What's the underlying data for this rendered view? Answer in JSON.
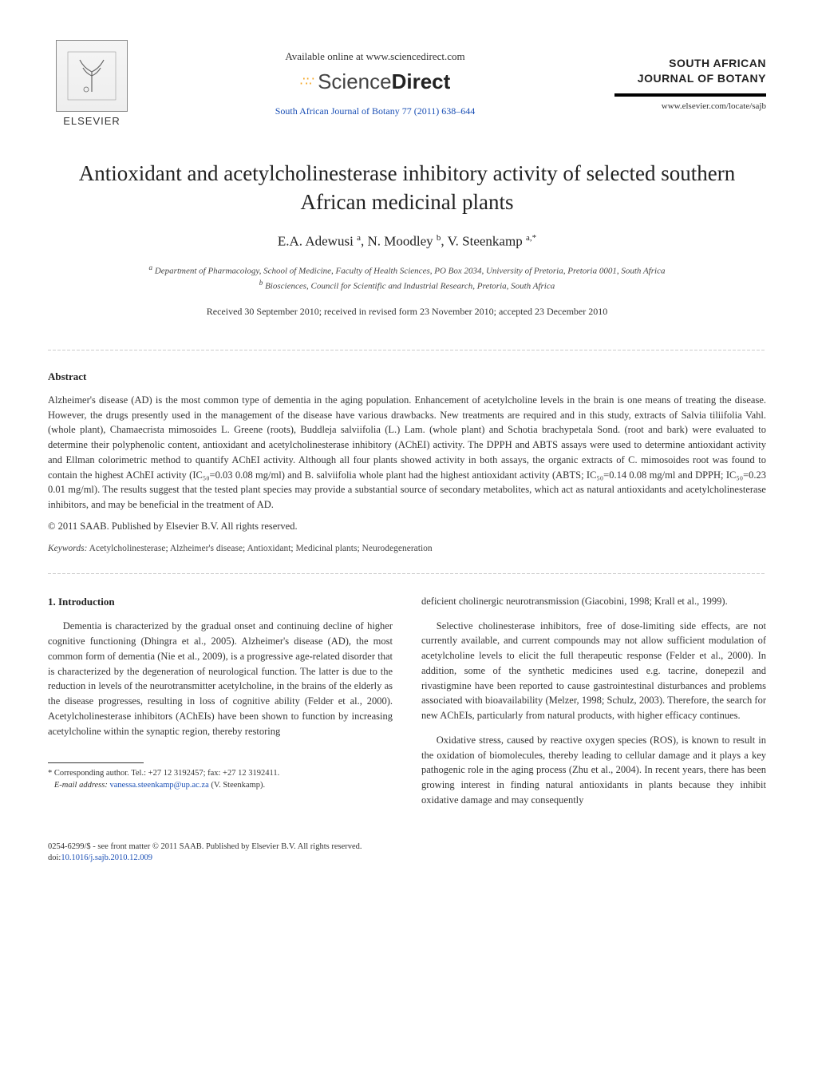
{
  "header": {
    "publisher": "ELSEVIER",
    "available_online": "Available online at www.sciencedirect.com",
    "sciencedirect_light": "Science",
    "sciencedirect_bold": "Direct",
    "journal_ref": "South African Journal of Botany 77 (2011) 638–644",
    "journal_name_line1": "SOUTH AFRICAN",
    "journal_name_line2": "JOURNAL OF BOTANY",
    "journal_url": "www.elsevier.com/locate/sajb"
  },
  "title": "Antioxidant and acetylcholinesterase inhibitory activity of selected southern African medicinal plants",
  "authors_html": "E.A. Adewusi <sup>a</sup>, N. Moodley <sup>b</sup>, V. Steenkamp <sup>a,*</sup>",
  "affiliations": {
    "a": "Department of Pharmacology, School of Medicine, Faculty of Health Sciences, PO Box 2034, University of Pretoria, Pretoria 0001, South Africa",
    "b": "Biosciences, Council for Scientific and Industrial Research, Pretoria, South Africa"
  },
  "received": "Received 30 September 2010; received in revised form 23 November 2010; accepted 23 December 2010",
  "abstract": {
    "heading": "Abstract",
    "body": "Alzheimer's disease (AD) is the most common type of dementia in the aging population. Enhancement of acetylcholine levels in the brain is one means of treating the disease. However, the drugs presently used in the management of the disease have various drawbacks. New treatments are required and in this study, extracts of Salvia tiliifolia Vahl. (whole plant), Chamaecrista mimosoides L. Greene (roots), Buddleja salviifolia (L.) Lam. (whole plant) and Schotia brachypetala Sond. (root and bark) were evaluated to determine their polyphenolic content, antioxidant and acetylcholinesterase inhibitory (AChEI) activity. The DPPH and ABTS assays were used to determine antioxidant activity and Ellman colorimetric method to quantify AChEI activity. Although all four plants showed activity in both assays, the organic extracts of C. mimosoides root was found to contain the highest AChEI activity (IC₅₀=0.03 0.08 mg/ml) and B. salviifolia whole plant had the highest antioxidant activity (ABTS; IC₅₀=0.14 0.08 mg/ml and DPPH; IC₅₀=0.23 0.01 mg/ml). The results suggest that the tested plant species may provide a substantial source of secondary metabolites, which act as natural antioxidants and acetylcholinesterase inhibitors, and may be beneficial in the treatment of AD.",
    "copyright": "© 2011 SAAB. Published by Elsevier B.V. All rights reserved."
  },
  "keywords": {
    "label": "Keywords:",
    "text": "Acetylcholinesterase; Alzheimer's disease; Antioxidant; Medicinal plants; Neurodegeneration"
  },
  "intro": {
    "heading": "1. Introduction",
    "left_p1": "Dementia is characterized by the gradual onset and continuing decline of higher cognitive functioning (Dhingra et al., 2005). Alzheimer's disease (AD), the most common form of dementia (Nie et al., 2009), is a progressive age-related disorder that is characterized by the degeneration of neurological function. The latter is due to the reduction in levels of the neurotransmitter acetylcholine, in the brains of the elderly as the disease progresses, resulting in loss of cognitive ability (Felder et al., 2000). Acetylcholinesterase inhibitors (AChEIs) have been shown to function by increasing acetylcholine within the synaptic region, thereby restoring",
    "right_p1": "deficient cholinergic neurotransmission (Giacobini, 1998; Krall et al., 1999).",
    "right_p2": "Selective cholinesterase inhibitors, free of dose-limiting side effects, are not currently available, and current compounds may not allow sufficient modulation of acetylcholine levels to elicit the full therapeutic response (Felder et al., 2000). In addition, some of the synthetic medicines used e.g. tacrine, donepezil and rivastigmine have been reported to cause gastrointestinal disturbances and problems associated with bioavailability (Melzer, 1998; Schulz, 2003). Therefore, the search for new AChEIs, particularly from natural products, with higher efficacy continues.",
    "right_p3": "Oxidative stress, caused by reactive oxygen species (ROS), is known to result in the oxidation of biomolecules, thereby leading to cellular damage and it plays a key pathogenic role in the aging process (Zhu et al., 2004). In recent years, there has been growing interest in finding natural antioxidants in plants because they inhibit oxidative damage and may consequently"
  },
  "footnote": {
    "corresponding": "Corresponding author. Tel.: +27 12 3192457; fax: +27 12 3192411.",
    "email_label": "E-mail address:",
    "email": "vanessa.steenkamp@up.ac.za",
    "email_who": "(V. Steenkamp)."
  },
  "bottom": {
    "line1": "0254-6299/$ - see front matter © 2011 SAAB. Published by Elsevier B.V. All rights reserved.",
    "doi_label": "doi:",
    "doi": "10.1016/j.sajb.2010.12.009"
  },
  "colors": {
    "link_blue": "#1a4fb5",
    "text": "#333333",
    "heading": "#222222"
  },
  "typography": {
    "title_fontsize_pt": 20,
    "body_fontsize_pt": 9.5,
    "abstract_fontsize_pt": 9.5,
    "font_family": "Times/Georgia serif"
  }
}
